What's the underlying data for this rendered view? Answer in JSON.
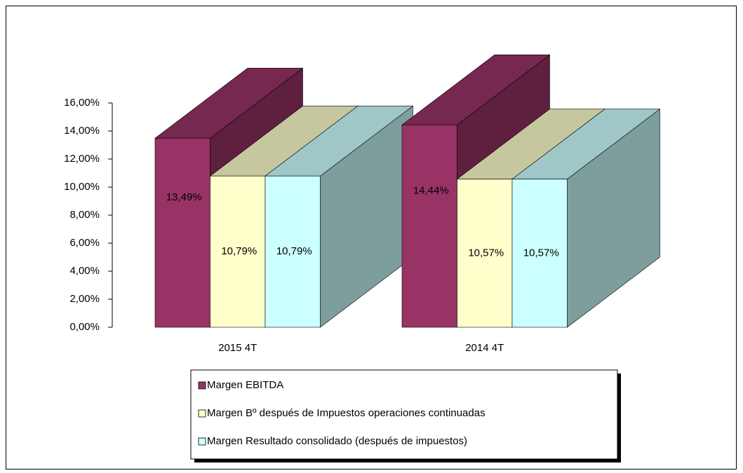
{
  "chart_data": {
    "type": "bar3d",
    "categories": [
      "2015 4T",
      "2014 4T"
    ],
    "series": [
      {
        "name": "Margen EBITDA",
        "color": "#993366",
        "values": [
          13.49,
          14.44
        ],
        "value_labels": [
          "13,49%",
          "14,44%"
        ]
      },
      {
        "name": "Margen Bº después de Impuestos operaciones continuadas",
        "color": "#ffffcc",
        "values": [
          10.79,
          10.57
        ],
        "value_labels": [
          "10,79%",
          "10,57%"
        ]
      },
      {
        "name": "Margen Resultado consolidado (después de impuestos)",
        "color": "#ccffff",
        "values": [
          10.79,
          10.57
        ],
        "value_labels": [
          "10,79%",
          "10,57%"
        ]
      }
    ],
    "ylim": [
      0,
      16
    ],
    "yticks": [
      {
        "value": 0,
        "label": "0,00%"
      },
      {
        "value": 2,
        "label": "2,00%"
      },
      {
        "value": 4,
        "label": "4,00%"
      },
      {
        "value": 6,
        "label": "6,00%"
      },
      {
        "value": 8,
        "label": "8,00%"
      },
      {
        "value": 10,
        "label": "10,00%"
      },
      {
        "value": 12,
        "label": "12,00%"
      },
      {
        "value": 14,
        "label": "14,00%"
      },
      {
        "value": 16,
        "label": "16,00%"
      }
    ],
    "legend": "bottom"
  }
}
